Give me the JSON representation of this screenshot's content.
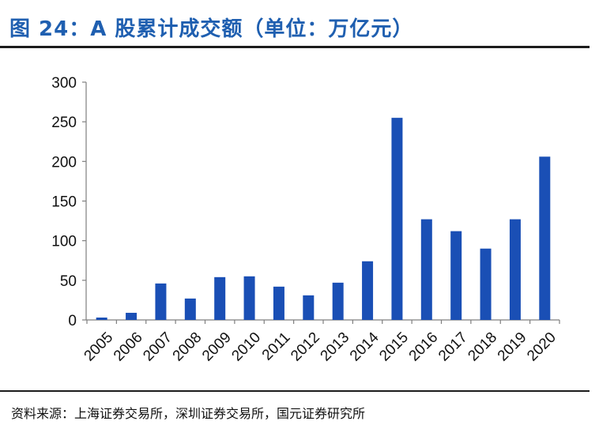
{
  "header": {
    "title": "图 24：A 股累计成交额（单位：万亿元）"
  },
  "footer": {
    "source": "资料来源：上海证券交易所，深圳证券交易所，国元证券研究所"
  },
  "colors": {
    "accent": "#1f5fb0",
    "bar": "#1a4fb5",
    "rule": "#1c1c1c"
  },
  "chart_data": {
    "type": "bar",
    "categories": [
      "2005",
      "2006",
      "2007",
      "2008",
      "2009",
      "2010",
      "2011",
      "2012",
      "2013",
      "2014",
      "2015",
      "2016",
      "2017",
      "2018",
      "2019",
      "2020"
    ],
    "values": [
      3,
      9,
      46,
      27,
      54,
      55,
      42,
      31,
      47,
      74,
      255,
      127,
      112,
      90,
      127,
      206
    ],
    "title": "图 24：A 股累计成交额（单位：万亿元）",
    "xlabel": "",
    "ylabel": "",
    "ylim": [
      0,
      300
    ],
    "yticks": [
      0,
      50,
      100,
      150,
      200,
      250,
      300
    ],
    "grid": false,
    "legend": "none"
  }
}
